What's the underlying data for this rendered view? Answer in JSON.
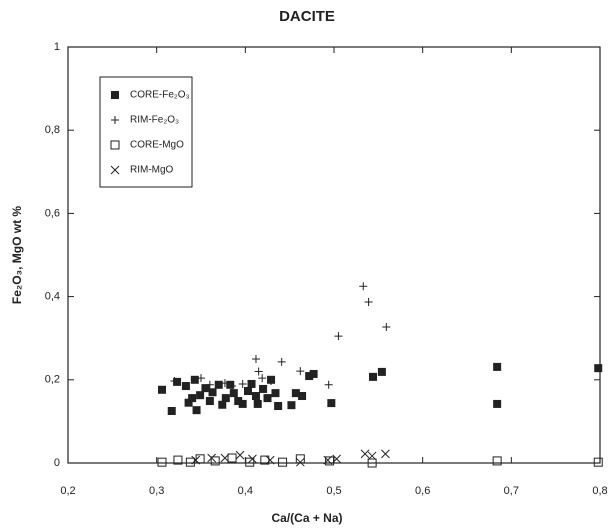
{
  "chart_data": {
    "type": "scatter",
    "title": "DACITE",
    "xlabel": "Ca/(Ca + Na)",
    "ylabel": "Fe₂O₃, MgO  wt %",
    "xlim": [
      0.2,
      0.8
    ],
    "ylim": [
      0,
      1
    ],
    "xticks": [
      {
        "value": 0.2,
        "label": "0,2"
      },
      {
        "value": 0.3,
        "label": "0,3"
      },
      {
        "value": 0.4,
        "label": "0,4"
      },
      {
        "value": 0.5,
        "label": "0,5"
      },
      {
        "value": 0.6,
        "label": "0,6"
      },
      {
        "value": 0.7,
        "label": "0,7"
      },
      {
        "value": 0.8,
        "label": "0,8"
      }
    ],
    "yticks": [
      0,
      {
        "value": 0.2,
        "label": "0,2"
      },
      {
        "value": 0.4,
        "label": "0,4"
      },
      {
        "value": 0.6,
        "label": "0,6"
      },
      {
        "value": 0.8,
        "label": "0,8"
      },
      1
    ],
    "legend": "upper left",
    "series": [
      {
        "name": "CORE-Fe₂O₃",
        "color": "#222",
        "marker": "square-filled",
        "x": [
          0.306,
          0.317,
          0.323,
          0.333,
          0.336,
          0.34,
          0.343,
          0.345,
          0.349,
          0.355,
          0.36,
          0.363,
          0.37,
          0.374,
          0.378,
          0.383,
          0.387,
          0.392,
          0.397,
          0.403,
          0.407,
          0.412,
          0.414,
          0.42,
          0.425,
          0.429,
          0.434,
          0.437,
          0.452,
          0.457,
          0.464,
          0.472,
          0.477,
          0.497,
          0.544,
          0.554,
          0.684,
          0.684,
          0.798
        ],
        "y": [
          0.176,
          0.125,
          0.195,
          0.185,
          0.145,
          0.156,
          0.2,
          0.127,
          0.163,
          0.18,
          0.149,
          0.17,
          0.188,
          0.14,
          0.156,
          0.188,
          0.168,
          0.149,
          0.142,
          0.173,
          0.19,
          0.161,
          0.142,
          0.178,
          0.156,
          0.2,
          0.168,
          0.137,
          0.139,
          0.168,
          0.161,
          0.209,
          0.214,
          0.144,
          0.207,
          0.219,
          0.231,
          0.142,
          0.228
        ]
      },
      {
        "name": "RIM-Fe₂O₃",
        "color": "#222",
        "marker": "plus",
        "x": [
          0.32,
          0.35,
          0.36,
          0.377,
          0.385,
          0.397,
          0.412,
          0.415,
          0.419,
          0.429,
          0.441,
          0.462,
          0.494,
          0.505,
          0.533,
          0.539,
          0.559
        ],
        "y": [
          0.197,
          0.204,
          0.188,
          0.192,
          0.185,
          0.19,
          0.25,
          0.22,
          0.204,
          0.197,
          0.243,
          0.221,
          0.188,
          0.305,
          0.425,
          0.387,
          0.327
        ]
      },
      {
        "name": "CORE-MgO",
        "color": "#222",
        "marker": "square-open",
        "x": [
          0.306,
          0.324,
          0.338,
          0.349,
          0.366,
          0.385,
          0.405,
          0.422,
          0.442,
          0.462,
          0.495,
          0.543,
          0.684,
          0.798
        ],
        "y": [
          0.002,
          0.007,
          0.002,
          0.01,
          0.005,
          0.012,
          0.002,
          0.007,
          0.002,
          0.01,
          0.005,
          0,
          0.005,
          0.002
        ]
      },
      {
        "name": "RIM-MgO",
        "color": "#222",
        "marker": "x",
        "x": [
          0.344,
          0.362,
          0.377,
          0.394,
          0.408,
          0.428,
          0.462,
          0.493,
          0.503,
          0.535,
          0.543,
          0.558
        ],
        "y": [
          0.007,
          0.012,
          0.012,
          0.019,
          0.01,
          0.007,
          0.002,
          0.007,
          0.01,
          0.022,
          0.017,
          0.022
        ]
      }
    ]
  }
}
